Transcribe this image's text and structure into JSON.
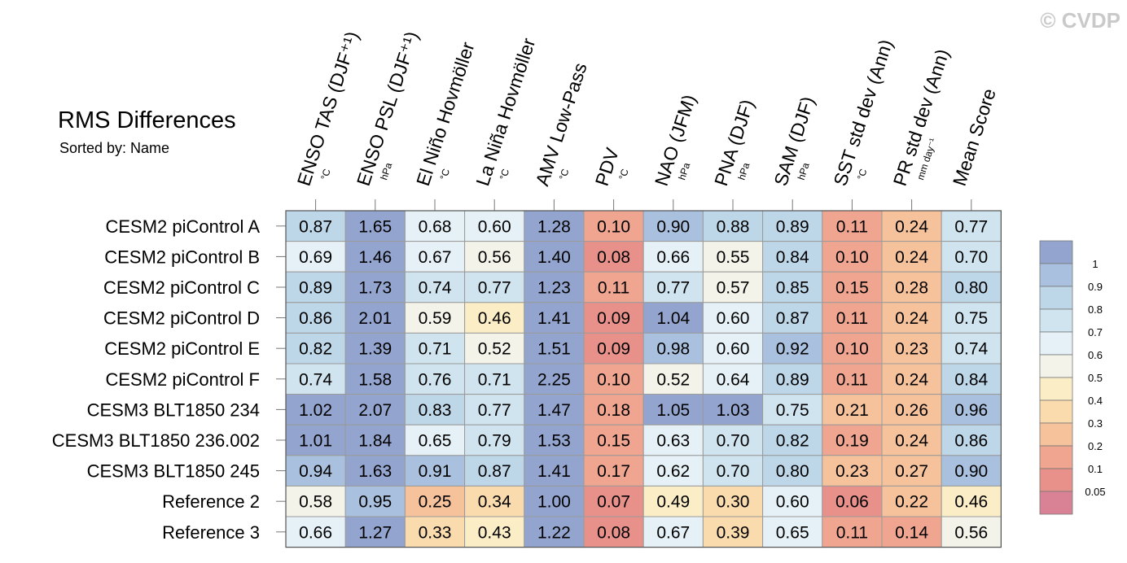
{
  "watermark": "© CVDP",
  "chart_data": {
    "type": "heatmap",
    "title": "RMS Differences",
    "subtitle": "Sorted by: Name",
    "columns": [
      {
        "label": "ENSO TAS (DJF⁺¹)",
        "unit": "°C"
      },
      {
        "label": "ENSO PSL (DJF⁺¹)",
        "unit": "hPa"
      },
      {
        "label": "El Niño Hovmöller",
        "unit": "°C"
      },
      {
        "label": "La Niña Hovmöller",
        "unit": "°C"
      },
      {
        "label": "AMV Low-Pass",
        "unit": "°C"
      },
      {
        "label": "PDV",
        "unit": "°C"
      },
      {
        "label": "NAO (JFM)",
        "unit": "hPa"
      },
      {
        "label": "PNA (DJF)",
        "unit": "hPa"
      },
      {
        "label": "SAM (DJF)",
        "unit": "hPa"
      },
      {
        "label": "SST std dev (Ann)",
        "unit": "°C"
      },
      {
        "label": "PR std dev (Ann)",
        "unit": "mm day⁻¹"
      },
      {
        "label": "Mean Score",
        "unit": ""
      }
    ],
    "rows": [
      {
        "name": "CESM2 piControl A",
        "values": [
          0.87,
          1.65,
          0.68,
          0.6,
          1.28,
          0.1,
          0.9,
          0.88,
          0.89,
          0.11,
          0.24,
          0.77
        ]
      },
      {
        "name": "CESM2 piControl B",
        "values": [
          0.69,
          1.46,
          0.67,
          0.56,
          1.4,
          0.08,
          0.66,
          0.55,
          0.84,
          0.1,
          0.24,
          0.7
        ]
      },
      {
        "name": "CESM2 piControl C",
        "values": [
          0.89,
          1.73,
          0.74,
          0.77,
          1.23,
          0.11,
          0.77,
          0.57,
          0.85,
          0.15,
          0.28,
          0.8
        ]
      },
      {
        "name": "CESM2 piControl D",
        "values": [
          0.86,
          2.01,
          0.59,
          0.46,
          1.41,
          0.09,
          1.04,
          0.6,
          0.87,
          0.11,
          0.24,
          0.75
        ]
      },
      {
        "name": "CESM2 piControl E",
        "values": [
          0.82,
          1.39,
          0.71,
          0.52,
          1.51,
          0.09,
          0.98,
          0.6,
          0.92,
          0.1,
          0.23,
          0.74
        ]
      },
      {
        "name": "CESM2 piControl F",
        "values": [
          0.74,
          1.58,
          0.76,
          0.71,
          2.25,
          0.1,
          0.52,
          0.64,
          0.89,
          0.11,
          0.24,
          0.84
        ]
      },
      {
        "name": "CESM3 BLT1850 234",
        "values": [
          1.02,
          2.07,
          0.83,
          0.77,
          1.47,
          0.18,
          1.05,
          1.03,
          0.75,
          0.21,
          0.26,
          0.96
        ]
      },
      {
        "name": "CESM3 BLT1850 236.002",
        "values": [
          1.01,
          1.84,
          0.65,
          0.79,
          1.53,
          0.15,
          0.63,
          0.7,
          0.82,
          0.19,
          0.24,
          0.86
        ]
      },
      {
        "name": "CESM3 BLT1850 245",
        "values": [
          0.94,
          1.63,
          0.91,
          0.87,
          1.41,
          0.17,
          0.62,
          0.7,
          0.8,
          0.23,
          0.27,
          0.9
        ]
      },
      {
        "name": "Reference 2",
        "values": [
          0.58,
          0.95,
          0.25,
          0.34,
          1.0,
          0.07,
          0.49,
          0.3,
          0.6,
          0.06,
          0.22,
          0.46
        ]
      },
      {
        "name": "Reference 3",
        "values": [
          0.66,
          1.27,
          0.33,
          0.43,
          1.22,
          0.08,
          0.67,
          0.39,
          0.65,
          0.11,
          0.14,
          0.56
        ]
      }
    ],
    "legend": {
      "labels": [
        "1",
        "0.9",
        "0.8",
        "0.7",
        "0.6",
        "0.5",
        "0.4",
        "0.3",
        "0.2",
        "0.1",
        "0.05"
      ],
      "bins": [
        {
          "color": "#93a5cf"
        },
        {
          "color": "#a9c1de"
        },
        {
          "color": "#bdd6e8"
        },
        {
          "color": "#cfe4ef"
        },
        {
          "color": "#e5f1f6"
        },
        {
          "color": "#f4f3e9"
        },
        {
          "color": "#fbedc6"
        },
        {
          "color": "#f9dbae"
        },
        {
          "color": "#f6c29c"
        },
        {
          "color": "#efa58f"
        },
        {
          "color": "#e8908a"
        },
        {
          "color": "#da8295"
        }
      ]
    }
  }
}
